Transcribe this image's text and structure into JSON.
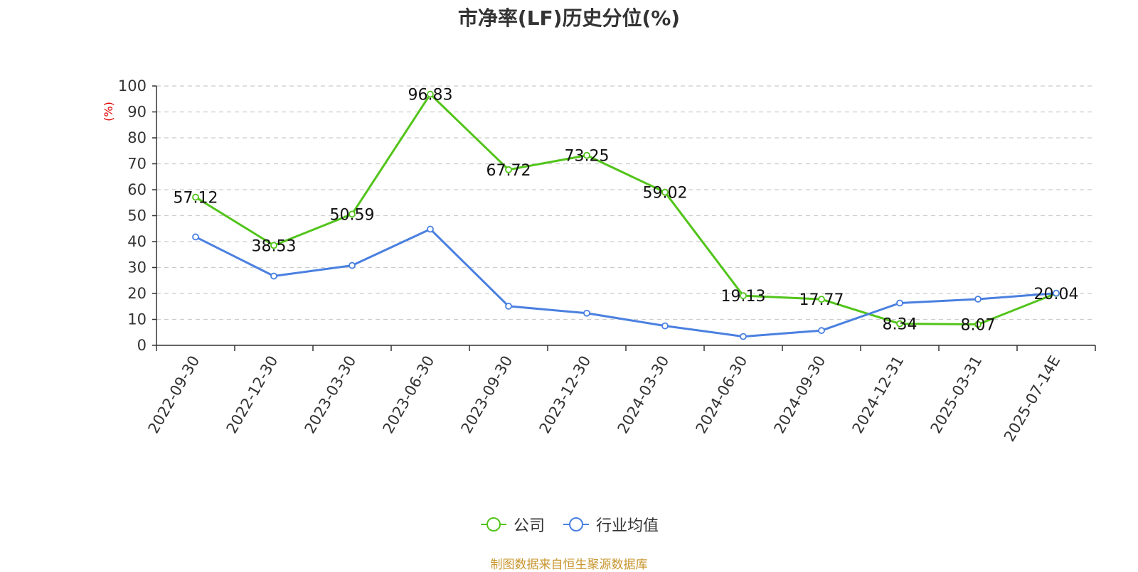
{
  "chart_data": {
    "type": "line",
    "title": "市净率(LF)历史分位(%)",
    "ylabel": "(%)",
    "ylim": [
      0,
      100
    ],
    "yticks": [
      0,
      10,
      20,
      30,
      40,
      50,
      60,
      70,
      80,
      90,
      100
    ],
    "grid": true,
    "legend_position": "bottom",
    "categories": [
      "2022-09-30",
      "2022-12-30",
      "2023-03-30",
      "2023-06-30",
      "2023-09-30",
      "2023-12-30",
      "2024-03-30",
      "2024-06-30",
      "2024-09-30",
      "2024-12-31",
      "2025-03-31",
      "2025-07-14E"
    ],
    "series": [
      {
        "name": "公司",
        "color": "#52c41a",
        "show_labels": true,
        "values": [
          57.12,
          38.53,
          50.59,
          96.83,
          67.72,
          73.25,
          59.02,
          19.13,
          17.77,
          8.34,
          8.07,
          20.04
        ]
      },
      {
        "name": "行业均值",
        "color": "#4a80e0",
        "show_labels": false,
        "values": [
          41.8,
          26.7,
          30.8,
          44.8,
          15.1,
          12.4,
          7.5,
          3.4,
          5.7,
          16.3,
          17.8,
          20.1
        ]
      }
    ]
  },
  "source": "制图数据来自恒生聚源数据库"
}
